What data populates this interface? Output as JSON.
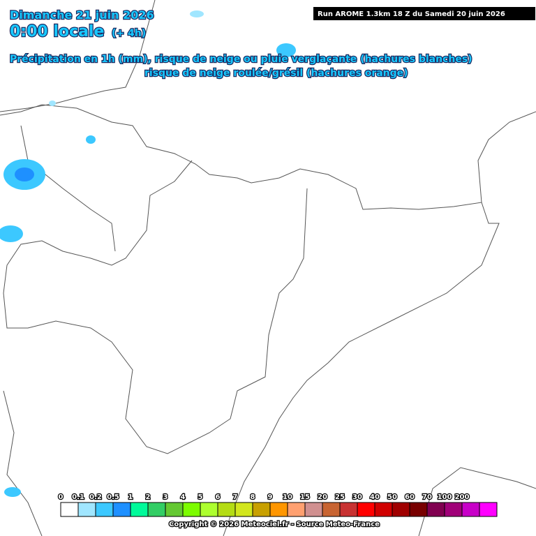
{
  "header": {
    "date": "Dimanche 21 juin 2026",
    "time": "0:00 locale",
    "lead": "(+ 4h)",
    "line1": "Précipitation en 1h (mm), risque de neige ou pluie verglaçante (hachures blanches)",
    "line2": "risque de neige roulée/grésil (hachures orange)",
    "run": "Run AROME 1.3km 18 Z du Samedi 20 juin 2026"
  },
  "legend": {
    "labels": [
      "0",
      "0.1",
      "0.2",
      "0.5",
      "1",
      "2",
      "3",
      "4",
      "5",
      "6",
      "7",
      "8",
      "9",
      "10",
      "15",
      "20",
      "25",
      "30",
      "40",
      "50",
      "60",
      "70",
      "100",
      "200"
    ],
    "colors": [
      "#ffffff",
      "#a0e6ff",
      "#3cc8ff",
      "#1e90ff",
      "#00fa9a",
      "#32cd64",
      "#64c832",
      "#7cfc00",
      "#adff2f",
      "#b4dc14",
      "#d2e61e",
      "#c8a000",
      "#ff9600",
      "#ffa070",
      "#d09090",
      "#c86432",
      "#c83232",
      "#ff0000",
      "#d00000",
      "#a00000",
      "#780000",
      "#800050",
      "#a00078",
      "#c800c8",
      "#ff00ff"
    ]
  },
  "copyright": "Copyright © 2026 Meteociel.fr - Source Meteo-France"
}
